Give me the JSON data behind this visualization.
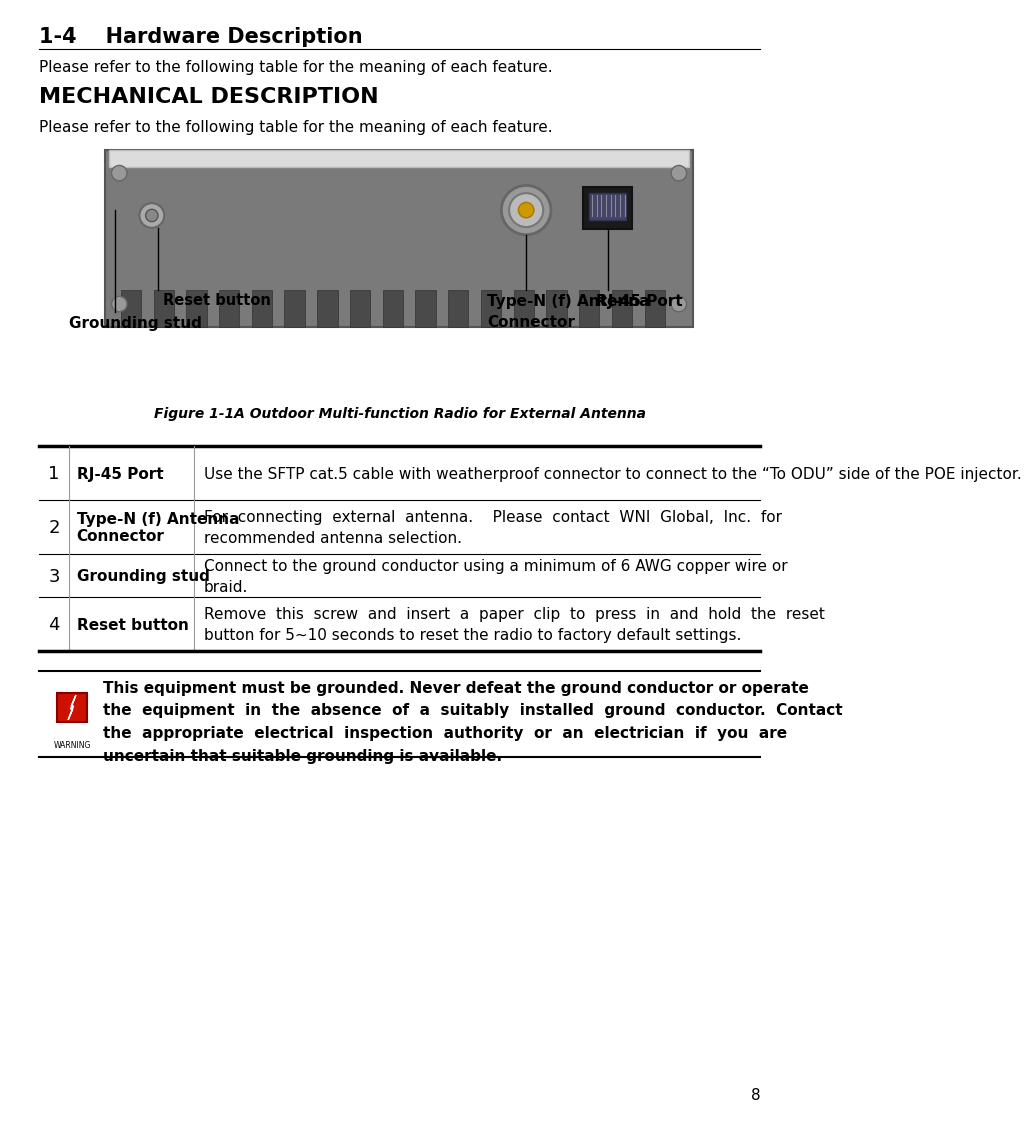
{
  "title_number": "1-4",
  "title_text": "Hardware Description",
  "intro_text": "Please refer to the following table for the meaning of each feature.",
  "section_title": "MECHANICAL DESCRIPTION",
  "section_intro": "Please refer to the following table for the meaning of each feature.",
  "figure_caption": "Figure 1-1A Outdoor Multi-function Radio for External Antenna",
  "table_rows": [
    {
      "num": "1",
      "name": "RJ-45 Port",
      "desc": "Use the SFTP cat.5 cable with weatherproof connector to connect to the “To ODU” side of the POE injector."
    },
    {
      "num": "2",
      "name": "Type-N (f) Antenna\nConnector",
      "desc": "For  connecting  external  antenna.    Please  contact  WNI  Global,  Inc.  for\nrecommended antenna selection."
    },
    {
      "num": "3",
      "name": "Grounding stud",
      "desc": "Connect to the ground conductor using a minimum of 6 AWG copper wire or\nbraid."
    },
    {
      "num": "4",
      "name": "Reset button",
      "desc": "Remove  this  screw  and  insert  a  paper  clip  to  press  in  and  hold  the  reset\nbutton for 5~10 seconds to reset the radio to factory default settings."
    }
  ],
  "warning_text": "This equipment must be grounded. Never defeat the ground conductor or operate\nthe  equipment  in  the  absence  of  a  suitably  installed  ground  conductor.  Contact\nthe  appropriate  electrical  inspection  authority  or  an  electrician  if  you  are\nuncertain that suitable grounding is available.",
  "page_number": "8",
  "bg_color": "#ffffff",
  "text_color": "#000000"
}
